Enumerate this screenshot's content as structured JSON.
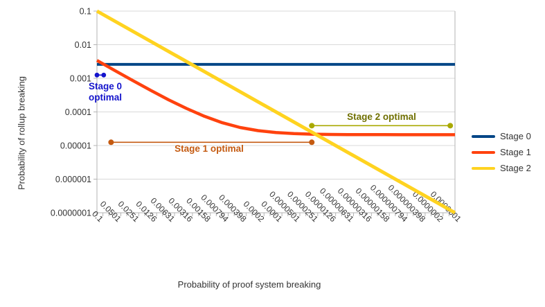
{
  "axes": {
    "x_title": "Probability of proof system breaking",
    "y_title": "Probability of rollup breaking"
  },
  "colors": {
    "grid": "#d9d9d9",
    "axis": "#b3b3b3",
    "tick_text": "#333333"
  },
  "chart_data": {
    "type": "line",
    "title": "",
    "xlabel": "Probability of proof system breaking",
    "ylabel": "Probability of rollup breaking",
    "x_scale": "log",
    "y_scale": "log",
    "x_range": [
      0.1,
      1e-07
    ],
    "y_range": [
      0.1,
      1e-07
    ],
    "grid": true,
    "x_tick_labels": [
      "0.1",
      "0.0501",
      "0.0251",
      "0.0126",
      "0.00631",
      "0.00316",
      "0.00158",
      "0.000794",
      "0.000398",
      "0.0002",
      "0.0001",
      "0.0000501",
      "0.0000251",
      "0.0000126",
      "0.00000631",
      "0.00000316",
      "0.00000158",
      "0.000000794",
      "0.000000398",
      "0.0000002",
      "0.0000001"
    ],
    "y_tick_labels": [
      "0.1",
      "0.01",
      "0.001",
      "0.0001",
      "0.00001",
      "0.000001",
      "0.0000001"
    ],
    "series": [
      {
        "name": "Stage 0",
        "color": "#004586",
        "width": 4,
        "x": [
          0.1,
          1e-07
        ],
        "y": [
          0.0026,
          0.0026
        ]
      },
      {
        "name": "Stage 1",
        "color": "#ff420e",
        "width": 4.5,
        "x": [
          0.1,
          0.0501,
          0.0251,
          0.0126,
          0.00631,
          0.00316,
          0.00158,
          0.000794,
          0.000398,
          0.0002,
          0.0001,
          5.01e-05,
          2.51e-05,
          1.26e-05,
          6.31e-06,
          3.16e-06,
          1.58e-06,
          7.94e-07,
          3.98e-07,
          2e-07,
          1e-07
        ],
        "y": [
          0.0034,
          0.0017,
          0.00086,
          0.00044,
          0.00023,
          0.000127,
          7.4e-05,
          4.76e-05,
          3.43e-05,
          2.77e-05,
          2.44e-05,
          2.27e-05,
          2.18e-05,
          2.14e-05,
          2.12e-05,
          2.11e-05,
          2.11e-05,
          2.1e-05,
          2.1e-05,
          2.1e-05,
          2.1e-05
        ]
      },
      {
        "name": "Stage 2",
        "color": "#ffd320",
        "width": 5,
        "x": [
          0.1,
          1e-07
        ],
        "y": [
          0.1,
          1e-07
        ]
      }
    ],
    "annotations": [
      {
        "label": "Stage 0 optimal",
        "color": "#1414cc",
        "text_color": "#1414cc",
        "x_start": 0.1,
        "x_end": 0.077,
        "y": 0.00125,
        "dot_radius": 3.4
      },
      {
        "label": "Stage 1 optimal",
        "color": "#c45a10",
        "text_color": "#c45a10",
        "x_start": 0.058,
        "x_end": 2.51e-05,
        "y": 1.25e-05,
        "dot_radius": 4
      },
      {
        "label": "Stage 2 optimal",
        "color": "#a9a900",
        "text_color": "#6f6f00",
        "x_start": 2.51e-05,
        "x_end": 1.2e-07,
        "y": 3.9e-05,
        "dot_radius": 4
      }
    ],
    "legend": {
      "position": "right",
      "entries": [
        "Stage 0",
        "Stage 1",
        "Stage 2"
      ]
    }
  }
}
